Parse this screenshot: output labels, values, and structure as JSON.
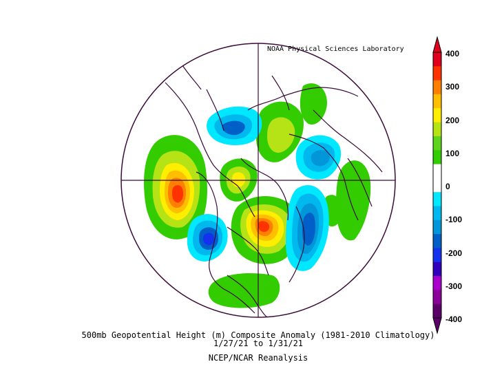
{
  "credit": "NOAA Physical Sciences Laboratory",
  "title": "500mb Geopotential Height (m) Composite Anomaly (1981-2010 Climatology)",
  "date_range": "1/27/21   to 1/31/21",
  "source": "NCEP/NCAR Reanalysis",
  "colorbar": {
    "ticks": [
      "400",
      "300",
      "200",
      "100",
      "0",
      "-100",
      "-200",
      "-300",
      "-400"
    ],
    "colors": [
      "#e0001d",
      "#ff3300",
      "#ff7f00",
      "#ffbf00",
      "#ffee00",
      "#b5e315",
      "#5fd41f",
      "#33cc00",
      "#ffffff",
      "#ffffff",
      "#00e8ff",
      "#00b8ee",
      "#0096d8",
      "#0060c8",
      "#1432ee",
      "#3000bb",
      "#aa00cc",
      "#8a0098",
      "#5a0068"
    ]
  },
  "map": {
    "projection": "north-polar-stereographic",
    "features": [
      "coastlines",
      "country-borders",
      "meridians-0-90-180-270"
    ]
  }
}
